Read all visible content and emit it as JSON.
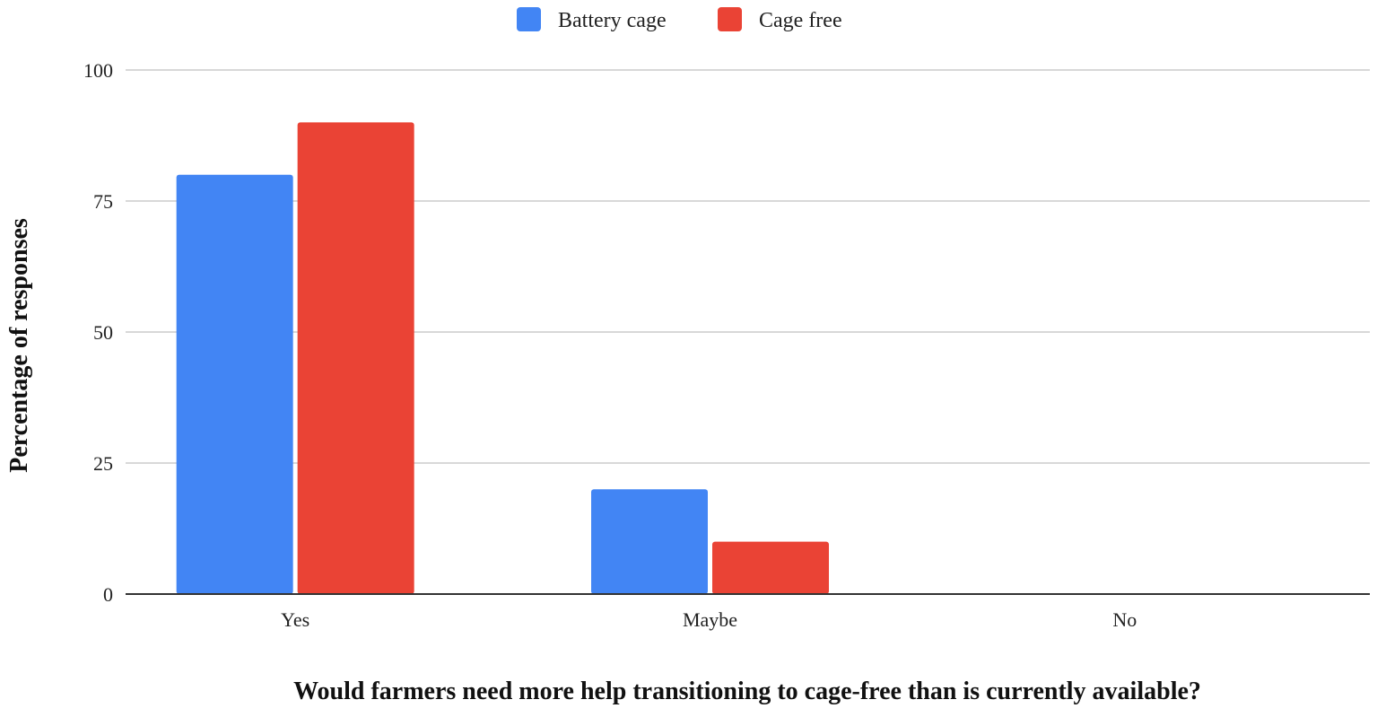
{
  "chart_data": {
    "type": "bar",
    "title": "",
    "xlabel": "Would farmers need more help transitioning to cage-free than is currently available?",
    "ylabel": "Percentage of responses",
    "categories": [
      "Yes",
      "Maybe",
      "No"
    ],
    "series": [
      {
        "name": "Battery cage",
        "color": "#4285f4",
        "values": [
          80,
          20,
          0
        ]
      },
      {
        "name": "Cage free",
        "color": "#ea4335",
        "values": [
          90,
          10,
          0
        ]
      }
    ],
    "ylim": [
      0,
      100
    ],
    "yticks": [
      "0",
      "25",
      "50",
      "75",
      "100"
    ],
    "grid": true,
    "legend_position": "top-center"
  }
}
